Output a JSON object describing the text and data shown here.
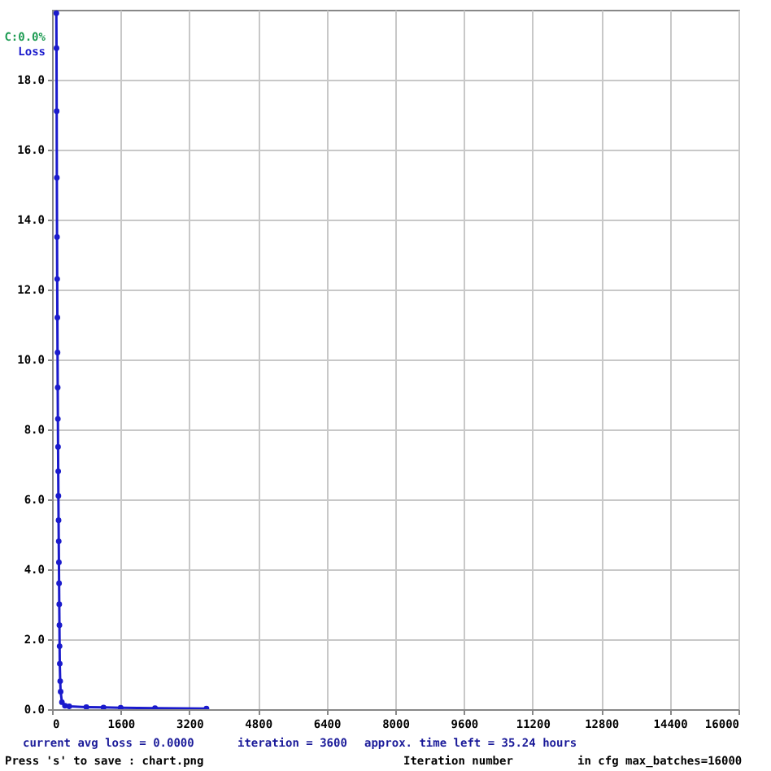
{
  "chart_data": {
    "type": "line",
    "xlabel": "Iteration number",
    "x": [
      100,
      104,
      108,
      112,
      116,
      120,
      124,
      128,
      132,
      136,
      140,
      144,
      148,
      152,
      156,
      160,
      164,
      168,
      172,
      176,
      180,
      190,
      200,
      230,
      300,
      400,
      800,
      1200,
      1600,
      2400,
      3600
    ],
    "series": [
      {
        "name": "Loss",
        "color": "#1a1acc",
        "values": [
          19.9,
          18.9,
          17.1,
          15.2,
          13.5,
          12.3,
          11.2,
          10.2,
          9.2,
          8.3,
          7.5,
          6.8,
          6.1,
          5.4,
          4.8,
          4.2,
          3.6,
          3.0,
          2.4,
          1.8,
          1.3,
          0.8,
          0.5,
          0.2,
          0.1,
          0.08,
          0.06,
          0.05,
          0.04,
          0.03,
          0.02
        ]
      }
    ],
    "xlim": [
      0,
      16000
    ],
    "xticks": [
      0,
      1600,
      3200,
      4800,
      6400,
      8000,
      9600,
      11200,
      12800,
      14400,
      16000
    ],
    "ylim": [
      0,
      20
    ],
    "yticks": [
      {
        "value": 0,
        "label": "0.0"
      },
      {
        "value": 2,
        "label": "2.0"
      },
      {
        "value": 4,
        "label": "4.0"
      },
      {
        "value": 6,
        "label": "6.0"
      },
      {
        "value": 8,
        "label": "8.0"
      },
      {
        "value": 10,
        "label": "10.0"
      },
      {
        "value": 12,
        "label": "12.0"
      },
      {
        "value": 14,
        "label": "14.0"
      },
      {
        "value": 16,
        "label": "16.0"
      },
      {
        "value": 18,
        "label": "18.0"
      }
    ],
    "grid": true,
    "legend": "top left",
    "marker": "circle",
    "line_style": "solid",
    "annotations": [
      "C:0.0%",
      "current avg loss = 0.0000",
      "iteration = 3600",
      "approx. time left = 35.24 hours",
      "Press 's' to save : chart.png",
      "in cfg max_batches=16000"
    ]
  }
}
